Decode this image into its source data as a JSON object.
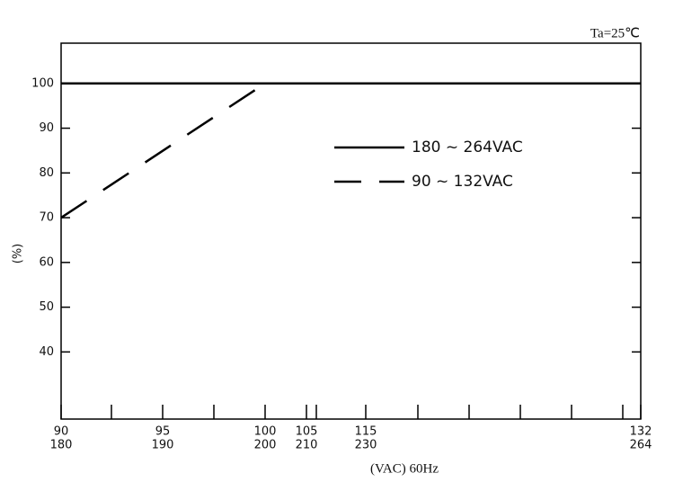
{
  "chart_data": {
    "type": "line",
    "annotation": "Ta=25℃",
    "xlabel": "(VAC) 60Hz",
    "ylabel": "(%)",
    "xlim": [
      90,
      132
    ],
    "xticks": [
      90,
      95,
      100,
      105,
      115,
      132
    ],
    "x2ticks": [
      180,
      190,
      200,
      210,
      230,
      264
    ],
    "ylim": [
      25,
      109
    ],
    "yticks": [
      40,
      50,
      60,
      70,
      80,
      90,
      100
    ],
    "series": [
      {
        "name": "180 ~ 264VAC",
        "color": "#000000",
        "style": "solid",
        "x": [
          90,
          132
        ],
        "values": [
          100,
          100
        ]
      },
      {
        "name": "90 ~ 132VAC",
        "color": "#000000",
        "style": "dashed",
        "x": [
          90,
          100
        ],
        "values": [
          70,
          100
        ]
      }
    ]
  }
}
